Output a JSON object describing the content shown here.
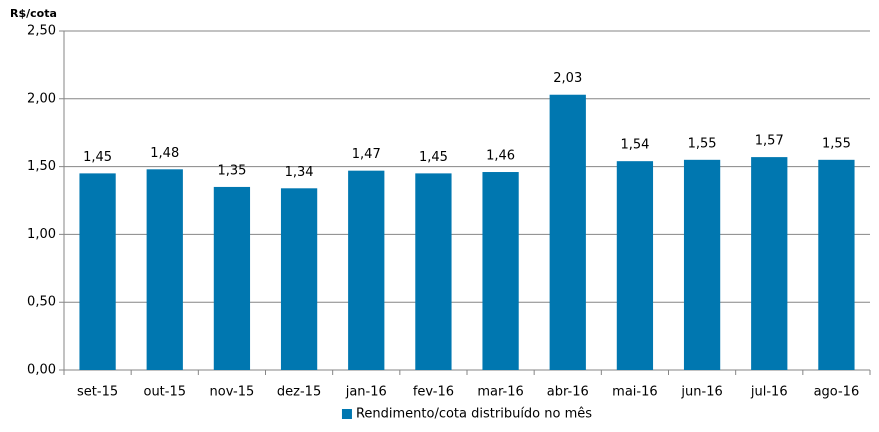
{
  "chart_data": {
    "type": "bar",
    "y_label": "R$/cota",
    "categories": [
      "set-15",
      "out-15",
      "nov-15",
      "dez-15",
      "jan-16",
      "fev-16",
      "mar-16",
      "abr-16",
      "mai-16",
      "jun-16",
      "jul-16",
      "ago-16"
    ],
    "series": [
      {
        "name": "Rendimento/cota distribuído no mês",
        "color": "#0077b0",
        "values": [
          1.45,
          1.48,
          1.35,
          1.34,
          1.47,
          1.45,
          1.46,
          2.03,
          1.54,
          1.55,
          1.57,
          1.55
        ],
        "value_labels": [
          "1,45",
          "1,48",
          "1,35",
          "1,34",
          "1,47",
          "1,45",
          "1,46",
          "2,03",
          "1,54",
          "1,55",
          "1,57",
          "1,55"
        ]
      }
    ],
    "ylim": [
      0,
      2.5
    ],
    "yticks": [
      {
        "value": 0,
        "label": "0,00"
      },
      {
        "value": 0.5,
        "label": "0,50"
      },
      {
        "value": 1,
        "label": "1,00"
      },
      {
        "value": 1.5,
        "label": "1,50"
      },
      {
        "value": 2,
        "label": "2,00"
      },
      {
        "value": 2.5,
        "label": "2,50"
      }
    ],
    "grid": true,
    "legend": "bottom"
  }
}
